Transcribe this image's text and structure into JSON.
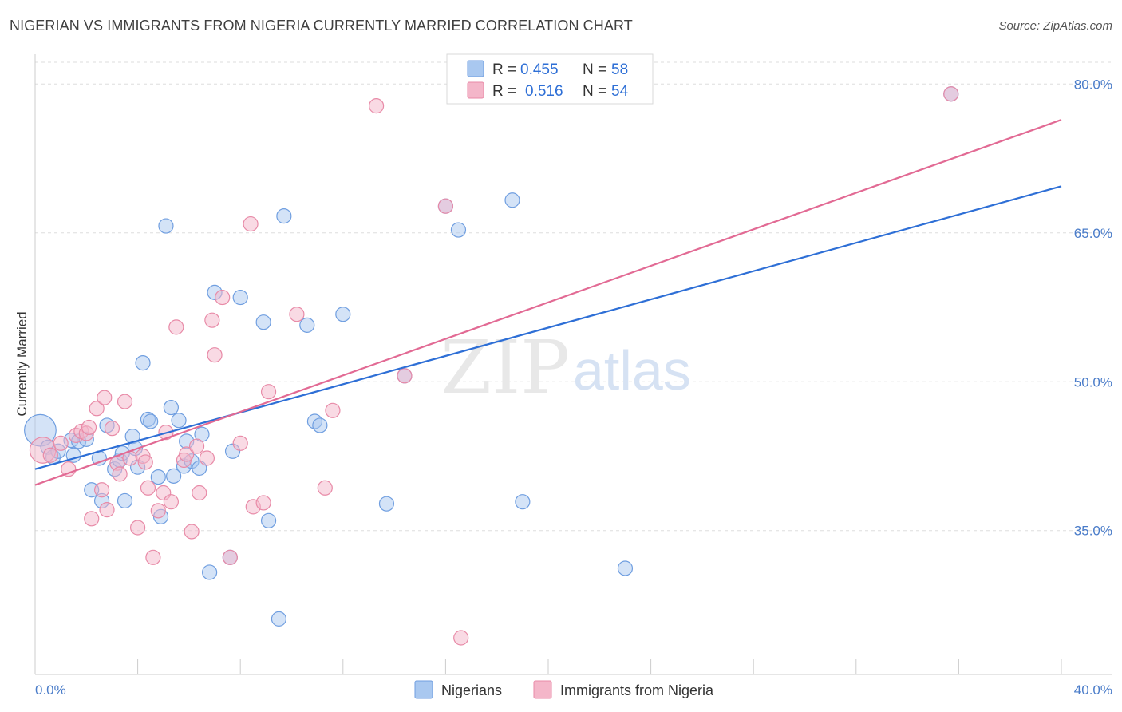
{
  "title": "NIGERIAN VS IMMIGRANTS FROM NIGERIA CURRENTLY MARRIED CORRELATION CHART",
  "source": "Source: ZipAtlas.com",
  "watermark": {
    "zip": "ZIP",
    "atlas": "atlas"
  },
  "legend_top": [
    {
      "r_label": "R =",
      "r_value": "0.455",
      "n_label": "N =",
      "n_value": "58"
    },
    {
      "r_label": "R =",
      "r_value": "0.516",
      "n_label": "N =",
      "n_value": "54"
    }
  ],
  "legend_bottom": [
    "Nigerians",
    "Immigrants from Nigeria"
  ],
  "colors": {
    "blue_fill": "#a9c8f0",
    "blue_stroke": "#6f9ee0",
    "blue_line": "#2e6fd6",
    "pink_fill": "#f4b6c9",
    "pink_stroke": "#e88aa7",
    "pink_line": "#e26a94",
    "grid": "#dddddd",
    "tick_text": "#4a7cc9"
  },
  "chart_data": {
    "type": "scatter",
    "title": "NIGERIAN VS IMMIGRANTS FROM NIGERIA CURRENTLY MARRIED CORRELATION CHART",
    "xlabel": "",
    "ylabel": "Currently Married",
    "xlim": [
      0,
      40
    ],
    "ylim": [
      20.5,
      83
    ],
    "x_tick_labels": [
      "0.0%",
      "40.0%"
    ],
    "y_ticks": [
      35,
      50,
      65,
      80
    ],
    "y_tick_labels": [
      "35.0%",
      "50.0%",
      "65.0%",
      "80.0%"
    ],
    "grid": true,
    "series": [
      {
        "name": "Nigerians",
        "R": 0.455,
        "N": 58,
        "trendline": {
          "x": [
            0,
            40
          ],
          "y": [
            41.2,
            69.7
          ]
        },
        "points": [
          [
            0.2,
            45.1,
            2.2
          ],
          [
            0.5,
            43.4,
            1
          ],
          [
            0.7,
            42.4,
            1
          ],
          [
            0.9,
            43.0,
            1
          ],
          [
            1.4,
            44.1,
            1
          ],
          [
            1.5,
            42.6,
            1
          ],
          [
            1.7,
            44.0,
            1
          ],
          [
            2.0,
            44.2,
            1
          ],
          [
            2.2,
            39.1,
            1
          ],
          [
            2.5,
            42.3,
            1
          ],
          [
            2.6,
            38.0,
            1
          ],
          [
            2.8,
            45.6,
            1
          ],
          [
            3.1,
            41.2,
            1
          ],
          [
            3.3,
            42.1,
            1
          ],
          [
            3.4,
            42.8,
            1
          ],
          [
            3.5,
            38.0,
            1
          ],
          [
            3.8,
            44.5,
            1
          ],
          [
            3.9,
            43.3,
            1
          ],
          [
            4.0,
            41.4,
            1
          ],
          [
            4.2,
            51.9,
            1
          ],
          [
            4.4,
            46.2,
            1
          ],
          [
            4.5,
            46.0,
            1
          ],
          [
            4.8,
            40.4,
            1
          ],
          [
            4.9,
            36.4,
            1
          ],
          [
            5.1,
            65.7,
            1
          ],
          [
            5.3,
            47.4,
            1
          ],
          [
            5.4,
            40.5,
            1
          ],
          [
            5.6,
            46.1,
            1
          ],
          [
            5.8,
            41.5,
            1
          ],
          [
            5.9,
            44.0,
            1
          ],
          [
            6.1,
            42.0,
            1
          ],
          [
            6.4,
            41.3,
            1
          ],
          [
            6.5,
            44.7,
            1
          ],
          [
            6.8,
            30.8,
            1
          ],
          [
            7.0,
            59.0,
            1
          ],
          [
            7.6,
            32.3,
            1
          ],
          [
            7.7,
            43.0,
            1
          ],
          [
            8.0,
            58.5,
            1
          ],
          [
            8.9,
            56.0,
            1
          ],
          [
            9.1,
            36.0,
            1
          ],
          [
            9.5,
            26.1,
            1
          ],
          [
            9.7,
            66.7,
            1
          ],
          [
            10.6,
            55.7,
            1
          ],
          [
            10.9,
            46.0,
            1
          ],
          [
            11.1,
            45.6,
            1
          ],
          [
            12.0,
            56.8,
            1
          ],
          [
            13.7,
            37.7,
            1
          ],
          [
            14.4,
            50.6,
            1
          ],
          [
            16.0,
            67.7,
            1
          ],
          [
            16.5,
            65.3,
            1
          ],
          [
            18.6,
            68.3,
            1
          ],
          [
            19.0,
            37.9,
            1
          ],
          [
            23.0,
            31.2,
            1
          ],
          [
            35.7,
            79.0,
            1
          ]
        ]
      },
      {
        "name": "Immigrants from Nigeria",
        "R": 0.516,
        "N": 54,
        "trendline": {
          "x": [
            0,
            40
          ],
          "y": [
            39.6,
            76.4
          ]
        },
        "points": [
          [
            0.3,
            43.1,
            1.8
          ],
          [
            0.6,
            42.6,
            1
          ],
          [
            1.0,
            43.8,
            1
          ],
          [
            1.3,
            41.2,
            1
          ],
          [
            1.6,
            44.6,
            1
          ],
          [
            1.8,
            45.0,
            1
          ],
          [
            2.0,
            44.8,
            1
          ],
          [
            2.1,
            45.4,
            1
          ],
          [
            2.2,
            36.2,
            1
          ],
          [
            2.4,
            47.3,
            1
          ],
          [
            2.6,
            39.1,
            1
          ],
          [
            2.7,
            48.4,
            1
          ],
          [
            2.8,
            37.1,
            1
          ],
          [
            3.0,
            45.3,
            1
          ],
          [
            3.2,
            41.8,
            1
          ],
          [
            3.3,
            40.7,
            1
          ],
          [
            3.5,
            48.0,
            1
          ],
          [
            3.7,
            42.3,
            1
          ],
          [
            4.0,
            35.3,
            1
          ],
          [
            4.2,
            42.5,
            1
          ],
          [
            4.3,
            41.9,
            1
          ],
          [
            4.4,
            39.3,
            1
          ],
          [
            4.6,
            32.3,
            1
          ],
          [
            4.8,
            37.0,
            1
          ],
          [
            5.0,
            38.8,
            1
          ],
          [
            5.1,
            44.9,
            1
          ],
          [
            5.3,
            37.9,
            1
          ],
          [
            5.5,
            55.5,
            1
          ],
          [
            5.8,
            42.1,
            1
          ],
          [
            5.9,
            42.7,
            1
          ],
          [
            6.1,
            34.9,
            1
          ],
          [
            6.3,
            43.5,
            1
          ],
          [
            6.4,
            38.8,
            1
          ],
          [
            6.7,
            42.3,
            1
          ],
          [
            6.9,
            56.2,
            1
          ],
          [
            7.0,
            52.7,
            1
          ],
          [
            7.3,
            58.5,
            1
          ],
          [
            7.6,
            32.3,
            1
          ],
          [
            8.0,
            43.8,
            1
          ],
          [
            8.4,
            65.9,
            1
          ],
          [
            8.5,
            37.4,
            1
          ],
          [
            8.9,
            37.8,
            1
          ],
          [
            9.1,
            49.0,
            1
          ],
          [
            10.2,
            56.8,
            1
          ],
          [
            11.3,
            39.3,
            1
          ],
          [
            11.6,
            47.1,
            1
          ],
          [
            13.3,
            77.8,
            1
          ],
          [
            14.4,
            50.6,
            1
          ],
          [
            16.0,
            67.7,
            1
          ],
          [
            16.6,
            24.2,
            1
          ],
          [
            35.7,
            79.0,
            1
          ]
        ]
      }
    ]
  }
}
